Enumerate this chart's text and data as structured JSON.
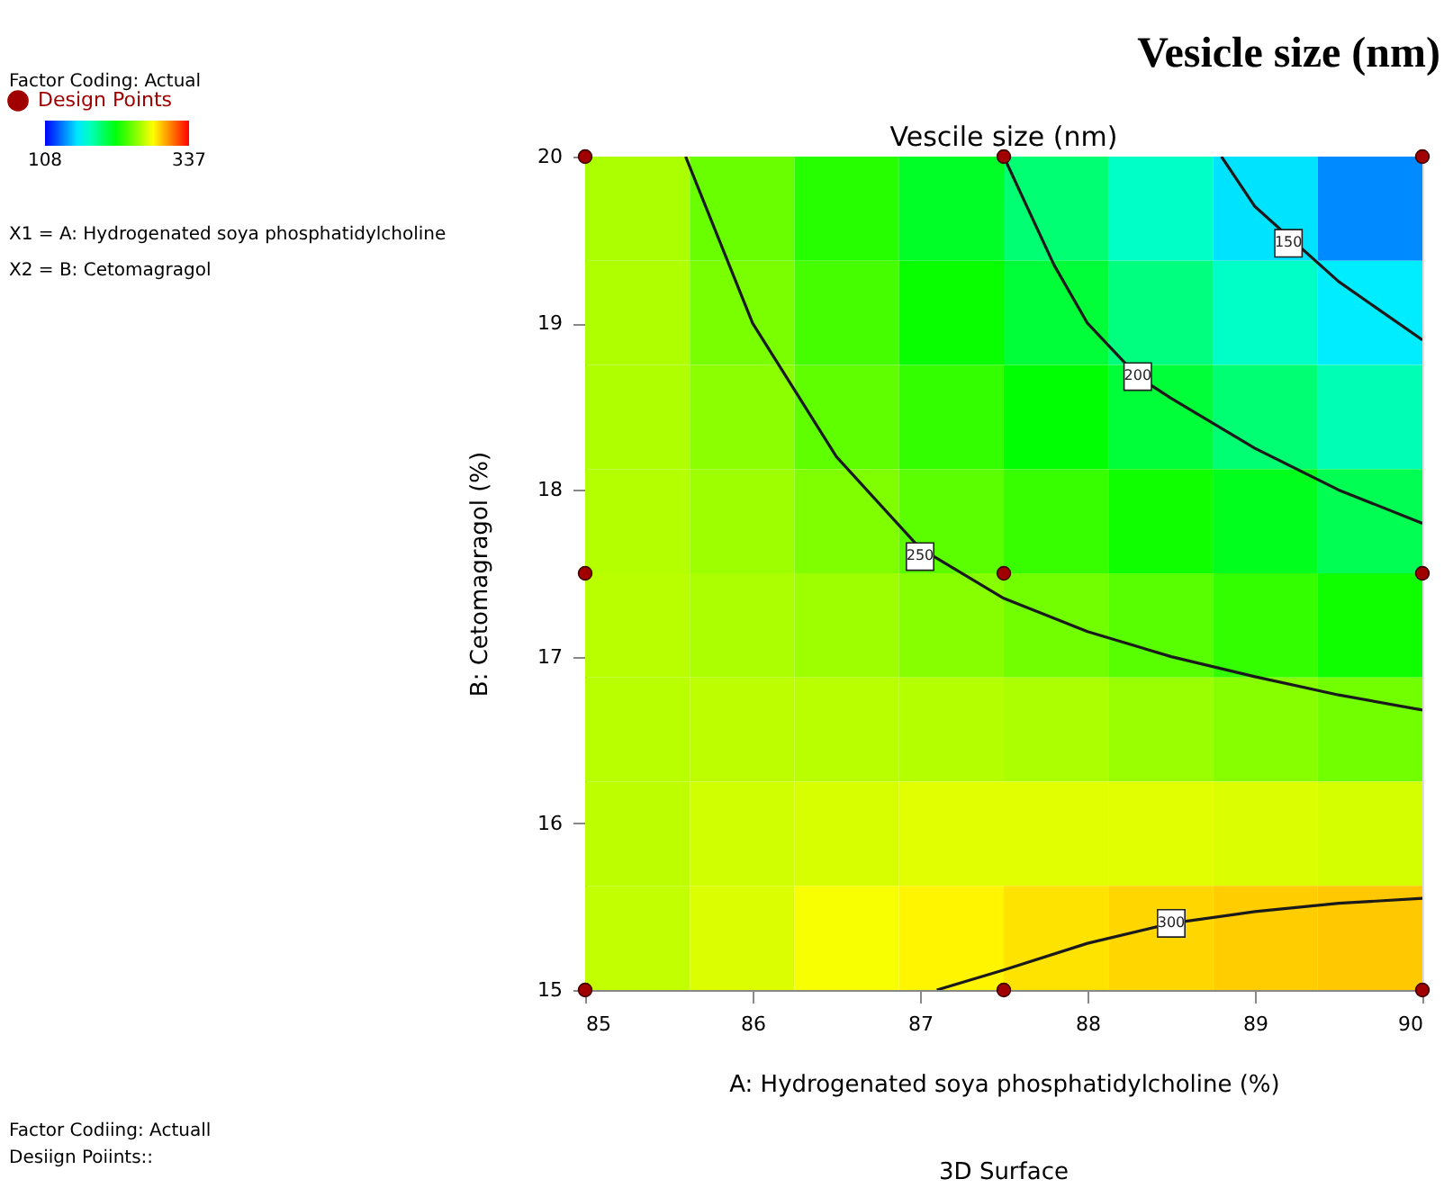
{
  "chart_data": {
    "type": "heatmap",
    "title": "Vesicle size (nm)",
    "subtitle": "Vescile size (nm)",
    "xlabel": "A: Hydrogenated soya phosphatidylcholine  (%)",
    "ylabel": "B: Cetomagragol (%)",
    "x": [
      85.3125,
      85.9375,
      86.5625,
      87.1875,
      87.8125,
      88.4375,
      89.0625,
      89.6875
    ],
    "y": [
      19.6875,
      19.0625,
      18.4375,
      17.8125,
      17.1875,
      16.5625,
      15.9375,
      15.3125
    ],
    "cells": [
      [
        261,
        246,
        231,
        214,
        197,
        178,
        159,
        139
      ],
      [
        262,
        250,
        238,
        224,
        210,
        194,
        178,
        161
      ],
      [
        262,
        254,
        244,
        234,
        222,
        210,
        197,
        182
      ],
      [
        263,
        258,
        251,
        243,
        235,
        226,
        216,
        204
      ],
      [
        264,
        261,
        258,
        253,
        248,
        242,
        234,
        226
      ],
      [
        264,
        265,
        264,
        263,
        261,
        257,
        253,
        248
      ],
      [
        265,
        269,
        271,
        273,
        273,
        273,
        272,
        270
      ],
      [
        266,
        272,
        278,
        282,
        286,
        289,
        291,
        292
      ]
    ],
    "clim": [
      108,
      337
    ],
    "cticks": [
      108,
      337
    ],
    "xlim": [
      85,
      90
    ],
    "xticks": [
      85,
      86,
      87,
      88,
      89,
      90
    ],
    "ylim": [
      15,
      20
    ],
    "yticks": [
      15,
      16,
      17,
      18,
      19,
      20
    ],
    "grid": false,
    "legend": "top left",
    "line_style": "solid",
    "series": [
      {
        "type": "line",
        "color": "#1a1a1a",
        "x": [
          85.6,
          86,
          86.5,
          87,
          87.5,
          88,
          88.5,
          89,
          89.5,
          90
        ],
        "values": [
          20,
          19.0,
          18.2,
          17.65,
          17.35,
          17.15,
          17.0,
          16.88,
          16.77,
          16.68
        ]
      },
      {
        "type": "line",
        "color": "#1a1a1a",
        "x": [
          87.5,
          87.8,
          88,
          88.3,
          88.5,
          89,
          89.5,
          90
        ],
        "values": [
          20,
          19.35,
          19.0,
          18.68,
          18.55,
          18.25,
          18.0,
          17.8
        ]
      },
      {
        "type": "line",
        "color": "#1a1a1a",
        "x": [
          88.8,
          89,
          89.5,
          90
        ],
        "values": [
          20,
          19.7,
          19.25,
          18.9
        ]
      },
      {
        "type": "line",
        "color": "#1a1a1a",
        "x": [
          87.1,
          87.5,
          88,
          88.5,
          89,
          89.5,
          90
        ],
        "values": [
          15,
          15.12,
          15.28,
          15.4,
          15.47,
          15.52,
          15.55
        ]
      },
      {
        "type": "scatter",
        "name": "Design Points",
        "color": "#a00000",
        "marker": "circle",
        "x": [
          85,
          87.5,
          90,
          85,
          87.5,
          90,
          85,
          87.5,
          90
        ],
        "values": [
          20,
          20,
          20,
          17.5,
          17.5,
          17.5,
          15,
          15,
          15
        ]
      }
    ],
    "annotations": [
      "Factor Coding: Actual",
      "X1 = A: Hydrogenated soya phosphatidylcholine",
      "X2 = B: Cetomagragol",
      {
        "text": "150",
        "x": 89.2,
        "y": 19.48
      },
      {
        "text": "200",
        "x": 88.3,
        "y": 18.68
      },
      {
        "text": "250",
        "x": 87.0,
        "y": 17.6
      },
      {
        "text": "300",
        "x": 88.5,
        "y": 15.4
      },
      "Factor Codiing: Actuall",
      "Desiign Poiints::",
      "3D Surface"
    ]
  }
}
